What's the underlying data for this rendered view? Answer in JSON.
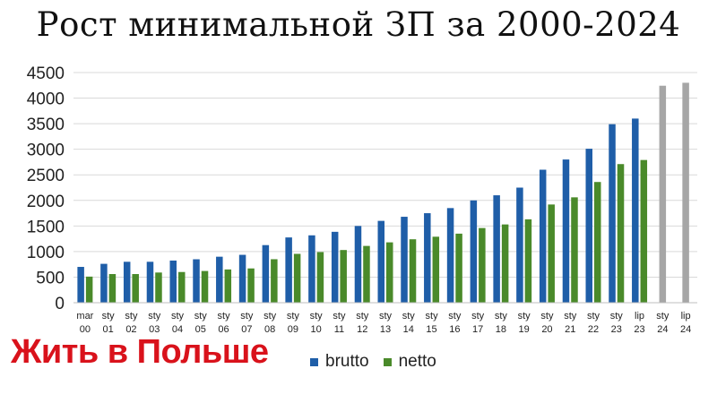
{
  "chart_data": {
    "type": "bar",
    "title": "Рост минимальной ЗП за 2000-2024",
    "xlabel": "",
    "ylabel": "",
    "ylim": [
      0,
      4500
    ],
    "yticks": [
      0,
      500,
      1000,
      1500,
      2000,
      2500,
      3000,
      3500,
      4000,
      4500
    ],
    "grid": true,
    "legend_position": "bottom",
    "categories": [
      [
        "mar",
        "00"
      ],
      [
        "sty",
        "01"
      ],
      [
        "sty",
        "02"
      ],
      [
        "sty",
        "03"
      ],
      [
        "sty",
        "04"
      ],
      [
        "sty",
        "05"
      ],
      [
        "sty",
        "06"
      ],
      [
        "sty",
        "07"
      ],
      [
        "sty",
        "08"
      ],
      [
        "sty",
        "09"
      ],
      [
        "sty",
        "10"
      ],
      [
        "sty",
        "11"
      ],
      [
        "sty",
        "12"
      ],
      [
        "sty",
        "13"
      ],
      [
        "sty",
        "14"
      ],
      [
        "sty",
        "15"
      ],
      [
        "sty",
        "16"
      ],
      [
        "sty",
        "17"
      ],
      [
        "sty",
        "18"
      ],
      [
        "sty",
        "19"
      ],
      [
        "sty",
        "20"
      ],
      [
        "sty",
        "21"
      ],
      [
        "sty",
        "22"
      ],
      [
        "sty",
        "23"
      ],
      [
        "lip",
        "23"
      ],
      [
        "sty",
        "24"
      ],
      [
        "lip",
        "24"
      ]
    ],
    "series": [
      {
        "name": "brutto",
        "color": "#1f5ea8",
        "values": [
          700,
          760,
          800,
          800,
          824,
          849,
          899,
          936,
          1126,
          1276,
          1317,
          1386,
          1500,
          1600,
          1680,
          1750,
          1850,
          2000,
          2100,
          2250,
          2600,
          2800,
          3010,
          3490,
          3600,
          null,
          null
        ]
      },
      {
        "name": "netto",
        "color": "#4a8a2a",
        "values": [
          510,
          560,
          560,
          590,
          600,
          620,
          650,
          670,
          850,
          955,
          990,
          1030,
          1110,
          1180,
          1240,
          1290,
          1350,
          1460,
          1530,
          1630,
          1920,
          2060,
          2360,
          2710,
          2790,
          null,
          null
        ]
      },
      {
        "color": "#a6a6a6",
        "values": [
          null,
          null,
          null,
          null,
          null,
          null,
          null,
          null,
          null,
          null,
          null,
          null,
          null,
          null,
          null,
          null,
          null,
          null,
          null,
          null,
          null,
          null,
          null,
          null,
          null,
          4242,
          4300
        ]
      }
    ]
  },
  "brand": "Жить в Польше"
}
